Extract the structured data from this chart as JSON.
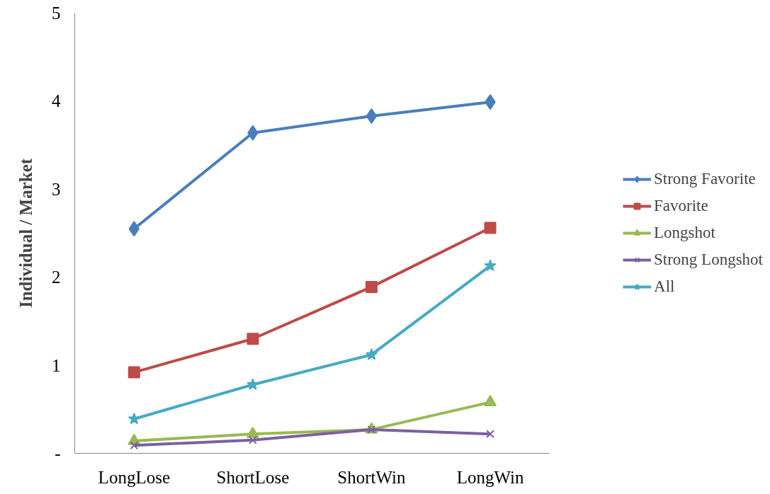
{
  "chart_data": {
    "type": "line",
    "ylabel": "Individual / Market",
    "categories": [
      "LongLose",
      "ShortLose",
      "ShortWin",
      "LongWin"
    ],
    "ylim": [
      0,
      5
    ],
    "yticks": [
      {
        "value": 0,
        "label": "-"
      },
      1,
      2,
      3,
      4,
      5
    ],
    "grid": false,
    "legend": "right",
    "series": [
      {
        "name": "Strong Favorite",
        "color": "#4a7ebb",
        "marker": "diamond",
        "values": [
          2.55,
          3.64,
          3.83,
          3.99
        ]
      },
      {
        "name": "Favorite",
        "color": "#be4b48",
        "marker": "square",
        "values": [
          0.92,
          1.3,
          1.89,
          2.56
        ]
      },
      {
        "name": "Longshot",
        "color": "#98b954",
        "marker": "triangle",
        "values": [
          0.14,
          0.22,
          0.27,
          0.58
        ]
      },
      {
        "name": "Strong Longshot",
        "color": "#7d60a0",
        "marker": "cross",
        "values": [
          0.09,
          0.15,
          0.27,
          0.22
        ]
      },
      {
        "name": "All",
        "color": "#46aac5",
        "marker": "star",
        "values": [
          0.39,
          0.78,
          1.12,
          2.13
        ]
      }
    ]
  }
}
